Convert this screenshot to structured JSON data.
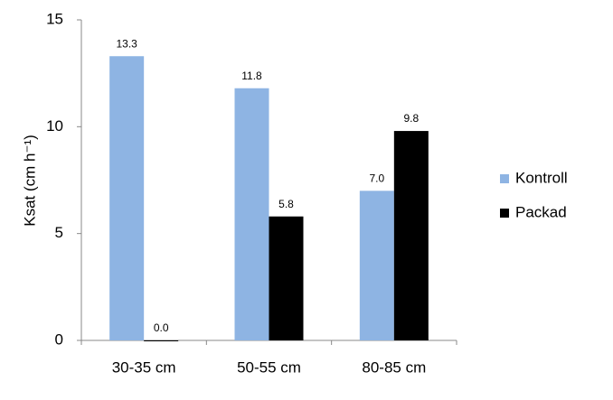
{
  "chart_data": {
    "type": "bar",
    "y_label": "Ksat (cm h⁻¹)",
    "categories": [
      "30-35 cm",
      "50-55 cm",
      "80-85 cm"
    ],
    "series": [
      {
        "name": "Kontroll",
        "color": "#8eb4e3",
        "values": [
          13.3,
          11.8,
          7.0
        ],
        "value_labels": [
          "13.3",
          "11.8",
          "7.0"
        ]
      },
      {
        "name": "Packad",
        "color": "#000000",
        "values": [
          0.0,
          5.8,
          9.8
        ],
        "value_labels": [
          "0.0",
          "5.8",
          "9.8"
        ]
      }
    ],
    "ylim": [
      0,
      15
    ],
    "yticks": [
      0,
      5,
      10,
      15
    ],
    "grid": false,
    "legend": "right"
  }
}
